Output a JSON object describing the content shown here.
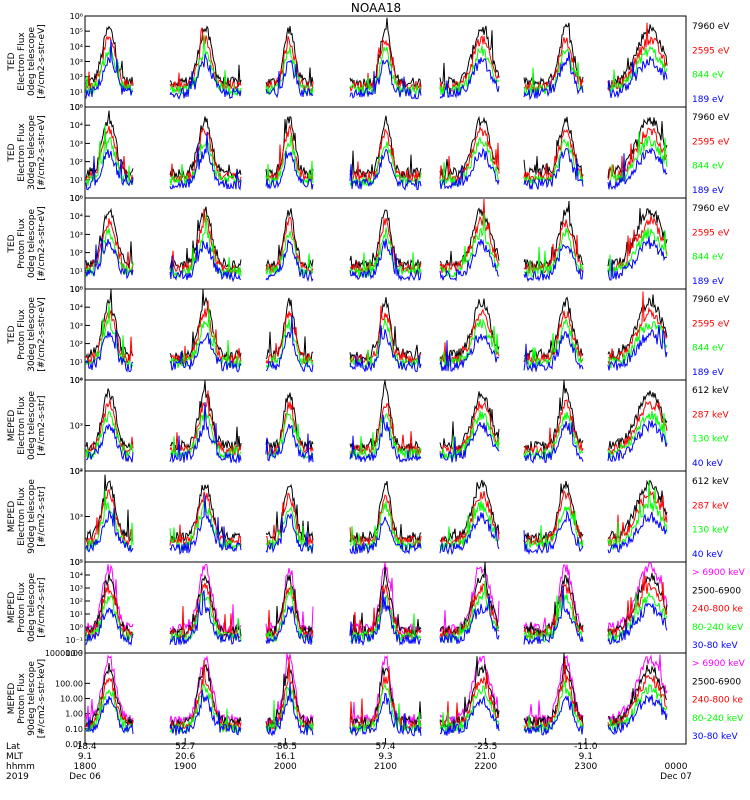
{
  "title": "NOAA18",
  "colors": {
    "black": "#000000",
    "red": "#ff0000",
    "green": "#00ff00",
    "blue": "#0000ff",
    "magenta": "#ff00ff"
  },
  "chart_data": [
    {
      "type": "line",
      "id": "p1",
      "ylabel": [
        "TED",
        "Electron Flux",
        "0deg telescope",
        "[#/cm2-s-str-eV]"
      ],
      "ytick_labels": [
        "10⁰",
        "10¹",
        "10²",
        "10³",
        "10⁴",
        "10⁵",
        "10⁶"
      ],
      "ylim_log10": [
        0,
        6
      ],
      "series": [
        {
          "name": "7960 eV",
          "color": "#000000"
        },
        {
          "name": "2595 eV",
          "color": "#ff0000"
        },
        {
          "name": "844 eV",
          "color": "#00ff00"
        },
        {
          "name": "189 eV",
          "color": "#0000ff"
        }
      ]
    },
    {
      "type": "line",
      "id": "p2",
      "ylabel": [
        "TED",
        "Electron Flux",
        "30deg telescope",
        "[#/cm2-s-str-eV]"
      ],
      "ytick_labels": [
        "10⁰",
        "10¹",
        "10²",
        "10³",
        "10⁴",
        "10⁵"
      ],
      "ylim_log10": [
        0,
        5
      ],
      "series": [
        {
          "name": "7960 eV",
          "color": "#000000"
        },
        {
          "name": "2595 eV",
          "color": "#ff0000"
        },
        {
          "name": "844 eV",
          "color": "#00ff00"
        },
        {
          "name": "189 eV",
          "color": "#0000ff"
        }
      ]
    },
    {
      "type": "line",
      "id": "p3",
      "ylabel": [
        "TED",
        "Proton Flux",
        "0deg telescope",
        "[#/cm2-s-str-eV]"
      ],
      "ytick_labels": [
        "10⁰",
        "10¹",
        "10²",
        "10³",
        "10⁴",
        "10⁵"
      ],
      "ylim_log10": [
        0,
        5
      ],
      "series": [
        {
          "name": "7960 eV",
          "color": "#000000"
        },
        {
          "name": "2595 eV",
          "color": "#ff0000"
        },
        {
          "name": "844 eV",
          "color": "#00ff00"
        },
        {
          "name": "189 eV",
          "color": "#0000ff"
        }
      ]
    },
    {
      "type": "line",
      "id": "p4",
      "ylabel": [
        "TED",
        "Proton Flux",
        "30deg telescope",
        "[#/cm2-s-str-eV]"
      ],
      "ytick_labels": [
        "10⁰",
        "10¹",
        "10²",
        "10³",
        "10⁴",
        "10⁵"
      ],
      "ylim_log10": [
        0,
        5
      ],
      "series": [
        {
          "name": "7960 eV",
          "color": "#000000"
        },
        {
          "name": "2595 eV",
          "color": "#ff0000"
        },
        {
          "name": "844 eV",
          "color": "#00ff00"
        },
        {
          "name": "189 eV",
          "color": "#0000ff"
        }
      ]
    },
    {
      "type": "line",
      "id": "p5",
      "ylabel": [
        "MEPED",
        "Electron Flux",
        "0deg telescope",
        "[#/cm2-s-str]"
      ],
      "ytick_labels": [
        "10²",
        "10³",
        "10⁴"
      ],
      "ylim_log10": [
        1.5,
        4.7
      ],
      "series": [
        {
          "name": "612 keV",
          "color": "#000000"
        },
        {
          "name": "287 keV",
          "color": "#ff0000"
        },
        {
          "name": "130 keV",
          "color": "#00ff00"
        },
        {
          "name": "40 keV",
          "color": "#0000ff"
        }
      ]
    },
    {
      "type": "line",
      "id": "p6",
      "ylabel": [
        "MEPED",
        "Electron Flux",
        "90deg telescope",
        "[#/cm2-s-str]"
      ],
      "ytick_labels": [
        "10²",
        "10³",
        "10⁴"
      ],
      "ylim_log10": [
        1.5,
        4.7
      ],
      "series": [
        {
          "name": "612 keV",
          "color": "#000000"
        },
        {
          "name": "287 keV",
          "color": "#ff0000"
        },
        {
          "name": "130 keV",
          "color": "#00ff00"
        },
        {
          "name": "40 keV",
          "color": "#0000ff"
        }
      ]
    },
    {
      "type": "line",
      "id": "p7",
      "ylabel": [
        "MEPED",
        "Proton Flux",
        "0deg telescope",
        "[#/cm2-s-str]"
      ],
      "ytick_labels": [
        "10⁻²",
        "10⁻¹",
        "10⁰",
        "10¹",
        "10²",
        "10³",
        "10⁴",
        "10⁵"
      ],
      "ylim_log10": [
        -2,
        5
      ],
      "series": [
        {
          "name": "> 6900 keV",
          "color": "#ff00ff"
        },
        {
          "name": "2500-6900",
          "color": "#000000"
        },
        {
          "name": "240-800 ke",
          "color": "#ff0000"
        },
        {
          "name": "80-240 keV",
          "color": "#00ff00"
        },
        {
          "name": "30-80 keV",
          "color": "#0000ff"
        }
      ]
    },
    {
      "type": "line",
      "id": "p8",
      "ylabel": [
        "MEPED",
        "Proton Flux",
        "90deg telescope",
        "[#/cm2-s-str-keV]"
      ],
      "ytick_labels": [
        "0.01",
        "0.10",
        "1.00",
        "10.00",
        "100.00",
        "10000.00"
      ],
      "ytick_values_log10": [
        -2,
        -1,
        0,
        1,
        2,
        4
      ],
      "ylim_log10": [
        -2,
        4
      ],
      "series": [
        {
          "name": "> 6900 keV",
          "color": "#ff00ff"
        },
        {
          "name": "2500-6900",
          "color": "#000000"
        },
        {
          "name": "240-800 ke",
          "color": "#ff0000"
        },
        {
          "name": "80-240 keV",
          "color": "#00ff00"
        },
        {
          "name": "30-80 keV",
          "color": "#0000ff"
        }
      ]
    }
  ],
  "x_axis": {
    "row_labels": [
      "Lat",
      "MLT",
      "hhmm",
      "2019"
    ],
    "ticks": [
      {
        "lat": "-18.4",
        "mlt": "9.1",
        "hhmm": "1800",
        "date": "Dec 06"
      },
      {
        "lat": "52.7",
        "mlt": "20.6",
        "hhmm": "1900",
        "date": ""
      },
      {
        "lat": "-86.5",
        "mlt": "16.1",
        "hhmm": "2000",
        "date": ""
      },
      {
        "lat": "57.4",
        "mlt": "9.3",
        "hhmm": "2100",
        "date": ""
      },
      {
        "lat": "-23.5",
        "mlt": "21.0",
        "hhmm": "2200",
        "date": ""
      },
      {
        "lat": "-11.0",
        "mlt": "9.1",
        "hhmm": "2300",
        "date": ""
      },
      {
        "lat": "",
        "mlt": "",
        "hhmm": "0000",
        "date": "Dec 07"
      }
    ]
  }
}
